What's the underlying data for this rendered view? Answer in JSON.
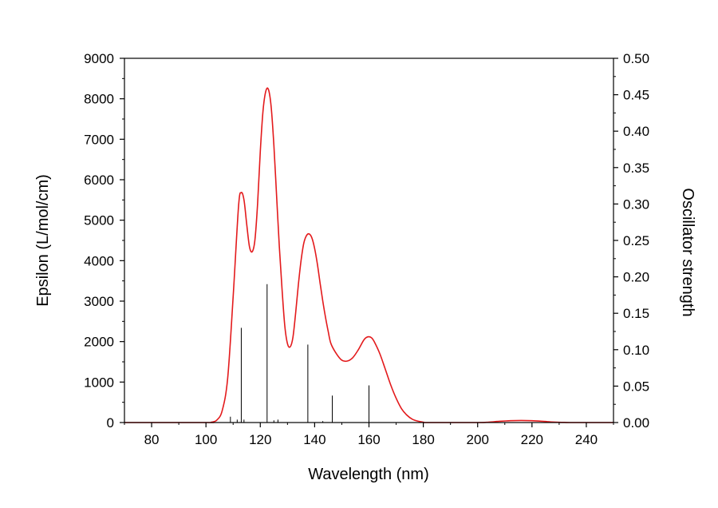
{
  "chart_data": {
    "type": "line",
    "xlabel": "Wavelength (nm)",
    "ylabel": "Epsilon (L/mol/cm)",
    "y2label": "Oscillator strength",
    "xlim": [
      70,
      250
    ],
    "ylim": [
      0,
      9000
    ],
    "y2lim": [
      0,
      0.5
    ],
    "xticks": [
      80,
      100,
      120,
      140,
      160,
      180,
      200,
      220,
      240
    ],
    "yticks": [
      0,
      1000,
      2000,
      3000,
      4000,
      5000,
      6000,
      7000,
      8000,
      9000
    ],
    "y2ticks": [
      "0.00",
      "0.05",
      "0.10",
      "0.15",
      "0.20",
      "0.25",
      "0.30",
      "0.35",
      "0.40",
      "0.45",
      "0.50"
    ],
    "grid": false,
    "series": [
      {
        "type": "line",
        "axis": "left",
        "color": "#e31a1c",
        "points": [
          [
            70,
            0
          ],
          [
            100,
            0
          ],
          [
            102,
            10
          ],
          [
            104,
            60
          ],
          [
            106,
            300
          ],
          [
            108,
            1100
          ],
          [
            110,
            3100
          ],
          [
            112,
            5350
          ],
          [
            113,
            5680
          ],
          [
            114,
            5500
          ],
          [
            115,
            4900
          ],
          [
            116,
            4350
          ],
          [
            117,
            4220
          ],
          [
            118,
            4500
          ],
          [
            119,
            5400
          ],
          [
            120,
            6700
          ],
          [
            121,
            7700
          ],
          [
            122,
            8180
          ],
          [
            123,
            8230
          ],
          [
            124,
            7800
          ],
          [
            125,
            6850
          ],
          [
            126,
            5600
          ],
          [
            127,
            4350
          ],
          [
            128,
            3300
          ],
          [
            129,
            2400
          ],
          [
            130,
            1950
          ],
          [
            131,
            1870
          ],
          [
            132,
            2100
          ],
          [
            133,
            2700
          ],
          [
            134,
            3400
          ],
          [
            135,
            4000
          ],
          [
            136,
            4430
          ],
          [
            137,
            4620
          ],
          [
            138,
            4660
          ],
          [
            139,
            4560
          ],
          [
            140,
            4300
          ],
          [
            141,
            3920
          ],
          [
            142,
            3450
          ],
          [
            143,
            3000
          ],
          [
            144,
            2600
          ],
          [
            145,
            2250
          ],
          [
            146,
            1950
          ],
          [
            148,
            1700
          ],
          [
            150,
            1540
          ],
          [
            152,
            1520
          ],
          [
            154,
            1600
          ],
          [
            156,
            1790
          ],
          [
            158,
            2030
          ],
          [
            159,
            2100
          ],
          [
            160,
            2120
          ],
          [
            161,
            2090
          ],
          [
            162,
            1990
          ],
          [
            164,
            1700
          ],
          [
            166,
            1320
          ],
          [
            168,
            930
          ],
          [
            170,
            600
          ],
          [
            172,
            340
          ],
          [
            174,
            180
          ],
          [
            176,
            80
          ],
          [
            178,
            35
          ],
          [
            180,
            10
          ],
          [
            182,
            0
          ],
          [
            200,
            0
          ],
          [
            204,
            10
          ],
          [
            208,
            30
          ],
          [
            212,
            45
          ],
          [
            216,
            50
          ],
          [
            220,
            45
          ],
          [
            224,
            30
          ],
          [
            228,
            12
          ],
          [
            232,
            3
          ],
          [
            236,
            0
          ],
          [
            250,
            0
          ]
        ]
      },
      {
        "type": "stick",
        "axis": "right",
        "color": "#000000",
        "points": [
          [
            109,
            0.008
          ],
          [
            111.5,
            0.004
          ],
          [
            113,
            0.13
          ],
          [
            114,
            0.004
          ],
          [
            122.5,
            0.19
          ],
          [
            125,
            0.003
          ],
          [
            126.5,
            0.004
          ],
          [
            137.5,
            0.107
          ],
          [
            143,
            0.002
          ],
          [
            146.5,
            0.037
          ],
          [
            160,
            0.051
          ]
        ]
      }
    ]
  }
}
